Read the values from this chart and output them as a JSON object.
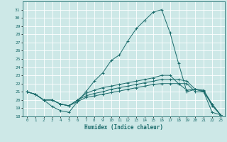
{
  "xlabel": "Humidex (Indice chaleur)",
  "xlim": [
    -0.5,
    23.5
  ],
  "ylim": [
    18,
    32
  ],
  "yticks": [
    18,
    19,
    20,
    21,
    22,
    23,
    24,
    25,
    26,
    27,
    28,
    29,
    30,
    31
  ],
  "xticks": [
    0,
    1,
    2,
    3,
    4,
    5,
    6,
    7,
    8,
    9,
    10,
    11,
    12,
    13,
    14,
    15,
    16,
    17,
    18,
    19,
    20,
    21,
    22,
    23
  ],
  "bg_color": "#cde8e7",
  "line_color": "#1a6b6b",
  "grid_color": "#ffffff",
  "lines": [
    {
      "x": [
        0,
        1,
        2,
        3,
        4,
        5,
        6,
        7,
        8,
        9,
        10,
        11,
        12,
        13,
        14,
        15,
        16,
        17,
        18,
        19,
        20,
        21,
        22,
        23
      ],
      "y": [
        21.0,
        20.7,
        20.0,
        19.2,
        18.7,
        18.5,
        19.8,
        21.0,
        22.3,
        23.3,
        24.8,
        25.5,
        27.2,
        28.7,
        29.7,
        30.7,
        31.0,
        28.2,
        24.5,
        21.0,
        21.3,
        21.0,
        19.5,
        18.2
      ]
    },
    {
      "x": [
        0,
        1,
        2,
        3,
        4,
        5,
        6,
        7,
        8,
        9,
        10,
        11,
        12,
        13,
        14,
        15,
        16,
        17,
        18,
        19,
        20,
        21,
        22,
        23
      ],
      "y": [
        21.0,
        20.7,
        20.0,
        20.0,
        19.5,
        19.3,
        20.0,
        20.5,
        20.8,
        21.0,
        21.3,
        21.5,
        21.7,
        21.9,
        22.1,
        22.3,
        22.5,
        22.5,
        22.5,
        22.3,
        21.3,
        21.1,
        19.3,
        18.2
      ]
    },
    {
      "x": [
        0,
        1,
        2,
        3,
        4,
        5,
        6,
        7,
        8,
        9,
        10,
        11,
        12,
        13,
        14,
        15,
        16,
        17,
        18,
        19,
        20,
        21,
        22,
        23
      ],
      "y": [
        21.0,
        20.7,
        20.0,
        20.0,
        19.5,
        19.3,
        20.0,
        20.8,
        21.2,
        21.5,
        21.7,
        21.9,
        22.1,
        22.3,
        22.5,
        22.7,
        23.0,
        23.0,
        22.0,
        21.2,
        21.3,
        21.2,
        19.5,
        18.2
      ]
    },
    {
      "x": [
        0,
        1,
        2,
        3,
        4,
        5,
        6,
        7,
        8,
        9,
        10,
        11,
        12,
        13,
        14,
        15,
        16,
        17,
        18,
        19,
        20,
        21,
        22,
        23
      ],
      "y": [
        21.0,
        20.7,
        20.0,
        20.0,
        19.5,
        19.3,
        19.8,
        20.3,
        20.5,
        20.7,
        20.9,
        21.1,
        21.3,
        21.5,
        21.7,
        21.9,
        22.0,
        22.0,
        22.0,
        22.0,
        21.0,
        21.0,
        18.5,
        18.2
      ]
    }
  ]
}
